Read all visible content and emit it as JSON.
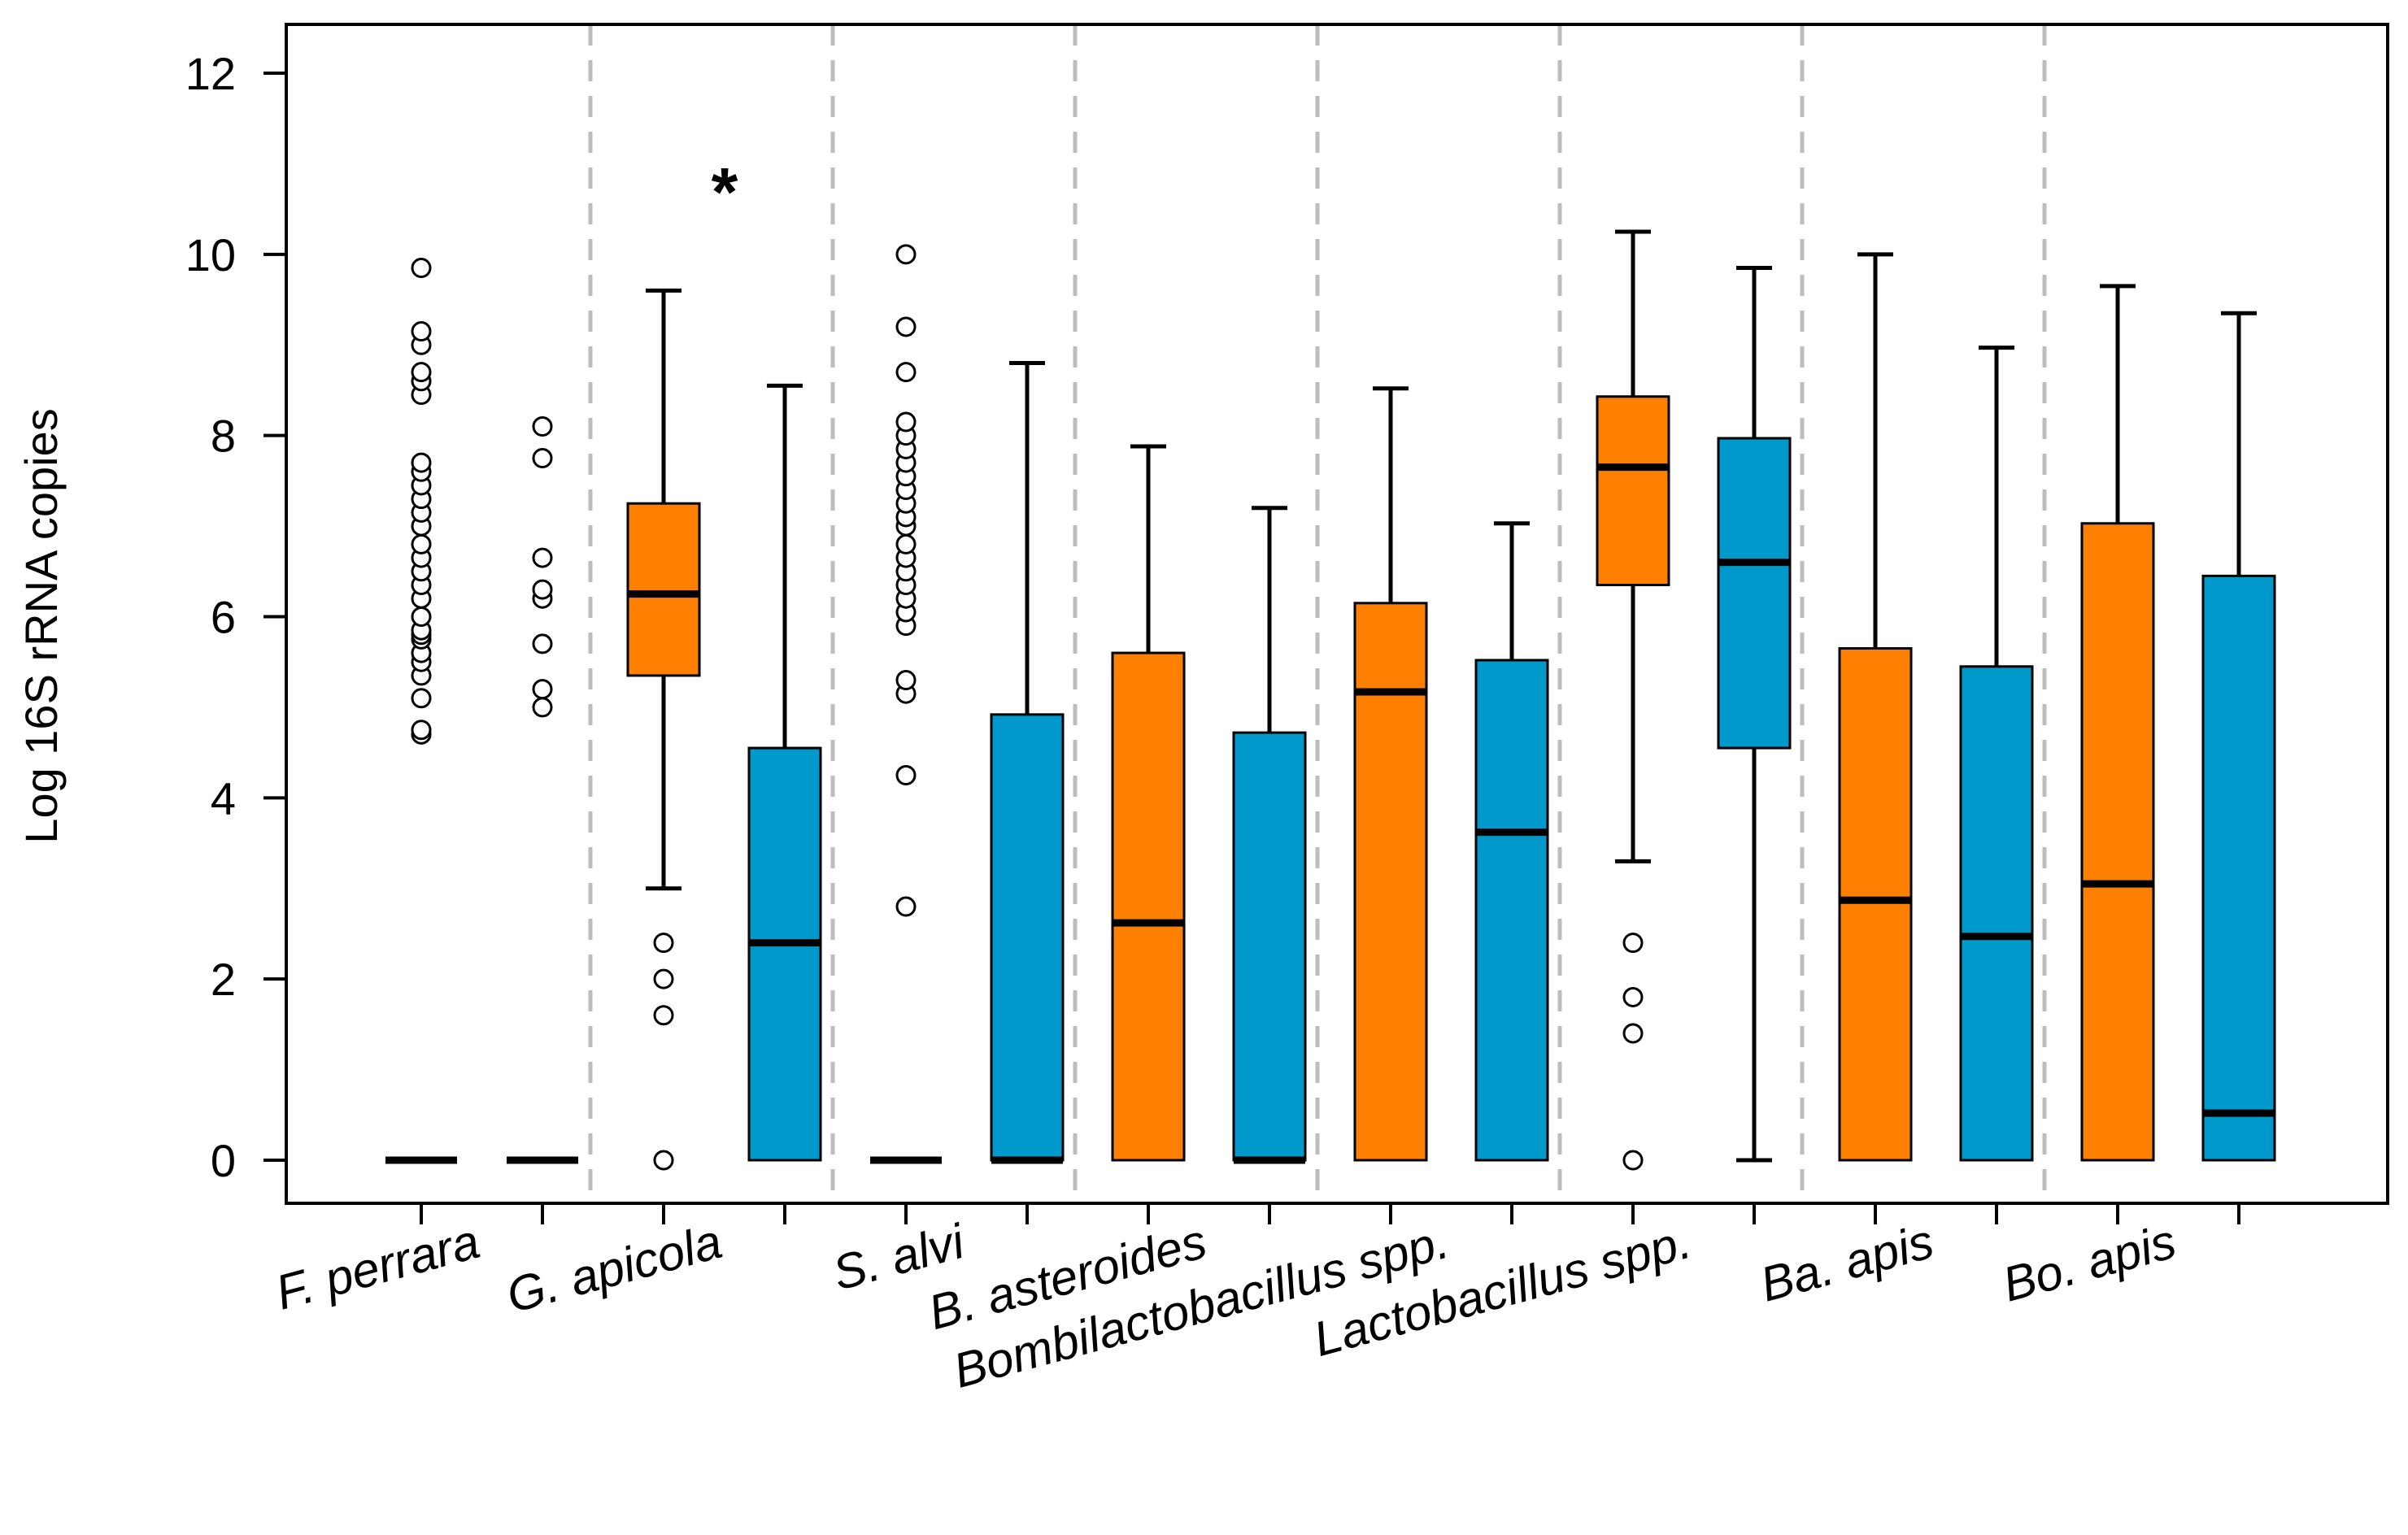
{
  "chart_data": {
    "type": "box",
    "ylabel": "Log 16S rRNA copies",
    "xlabel": "",
    "ylim": [
      -0.45,
      12.5
    ],
    "yticks": [
      0,
      2,
      4,
      6,
      8,
      10,
      12
    ],
    "ytick_labels": [
      "0",
      "2",
      "4",
      "6",
      "8",
      "10",
      "12"
    ],
    "grid": false,
    "legend": "none",
    "colors": {
      "group1": "#FF7F00",
      "group2": "#0099CC",
      "outline": "#000000",
      "separator": "#BDBDBD"
    },
    "categories": [
      "F. perrara",
      "G. apicola",
      "S. alvi",
      "B. asteroides",
      "Bombilactobacillus spp.",
      "Lactobacillus spp.",
      "Ba. apis",
      "Bo. apis"
    ],
    "annotation": "*",
    "annotation_category": "G. apicola",
    "boxes": [
      {
        "category": "F. perrara",
        "group": 1,
        "min": 0,
        "q1": 0,
        "median": 0,
        "q3": 0,
        "max": 0,
        "outliers": [
          4.7,
          4.75,
          5.1,
          5.35,
          5.5,
          5.6,
          5.75,
          5.8,
          5.85,
          6.0,
          6.2,
          6.35,
          6.5,
          6.65,
          6.8,
          7.0,
          7.15,
          7.3,
          7.45,
          7.6,
          7.7,
          8.45,
          8.6,
          8.7,
          9.0,
          9.15,
          9.85
        ]
      },
      {
        "category": "F. perrara",
        "group": 2,
        "min": 0,
        "q1": 0,
        "median": 0,
        "q3": 0,
        "max": 0,
        "outliers": [
          5.0,
          5.2,
          5.7,
          6.2,
          6.3,
          6.65,
          7.75,
          8.1
        ]
      },
      {
        "category": "G. apicola",
        "group": 1,
        "min": 3.0,
        "q1": 5.35,
        "median": 6.25,
        "q3": 7.25,
        "max": 9.6,
        "outliers": [
          0,
          1.6,
          2.0,
          2.4
        ]
      },
      {
        "category": "G. apicola",
        "group": 2,
        "min": 0,
        "q1": 0,
        "median": 2.4,
        "q3": 4.55,
        "max": 8.55,
        "outliers": []
      },
      {
        "category": "S. alvi",
        "group": 1,
        "min": 0,
        "q1": 0,
        "median": 0,
        "q3": 0,
        "max": 0,
        "outliers": [
          2.8,
          4.25,
          5.15,
          5.3,
          5.9,
          6.05,
          6.2,
          6.35,
          6.5,
          6.65,
          6.8,
          7.0,
          7.1,
          7.25,
          7.4,
          7.55,
          7.7,
          7.85,
          8.0,
          8.15,
          8.7,
          9.2,
          10.0
        ]
      },
      {
        "category": "S. alvi",
        "group": 2,
        "min": 0,
        "q1": 0,
        "median": 0,
        "q3": 4.92,
        "max": 8.8,
        "outliers": []
      },
      {
        "category": "B. asteroides",
        "group": 1,
        "min": 0,
        "q1": 0,
        "median": 2.62,
        "q3": 5.6,
        "max": 7.88,
        "outliers": []
      },
      {
        "category": "B. asteroides",
        "group": 2,
        "min": 0,
        "q1": 0,
        "median": 0,
        "q3": 4.72,
        "max": 7.2,
        "outliers": []
      },
      {
        "category": "Bombilactobacillus spp.",
        "group": 1,
        "min": 0,
        "q1": 0,
        "median": 5.17,
        "q3": 6.15,
        "max": 8.52,
        "outliers": []
      },
      {
        "category": "Bombilactobacillus spp.",
        "group": 2,
        "min": 0,
        "q1": 0,
        "median": 3.62,
        "q3": 5.52,
        "max": 7.03,
        "outliers": []
      },
      {
        "category": "Lactobacillus spp.",
        "group": 1,
        "min": 3.3,
        "q1": 6.35,
        "median": 7.65,
        "q3": 8.43,
        "max": 10.25,
        "outliers": [
          0,
          1.4,
          1.8,
          2.4
        ]
      },
      {
        "category": "Lactobacillus spp.",
        "group": 2,
        "min": 0,
        "q1": 4.55,
        "median": 6.6,
        "q3": 7.97,
        "max": 9.85,
        "outliers": []
      },
      {
        "category": "Ba. apis",
        "group": 1,
        "min": 0,
        "q1": 0,
        "median": 2.87,
        "q3": 5.65,
        "max": 10.0,
        "outliers": []
      },
      {
        "category": "Ba. apis",
        "group": 2,
        "min": 0,
        "q1": 0,
        "median": 2.47,
        "q3": 5.45,
        "max": 8.97,
        "outliers": []
      },
      {
        "category": "Bo. apis",
        "group": 1,
        "min": 0,
        "q1": 0,
        "median": 3.05,
        "q3": 7.03,
        "max": 9.65,
        "outliers": []
      },
      {
        "category": "Bo. apis",
        "group": 2,
        "min": 0,
        "q1": 0,
        "median": 0.52,
        "q3": 6.45,
        "max": 9.35,
        "outliers": []
      }
    ]
  }
}
